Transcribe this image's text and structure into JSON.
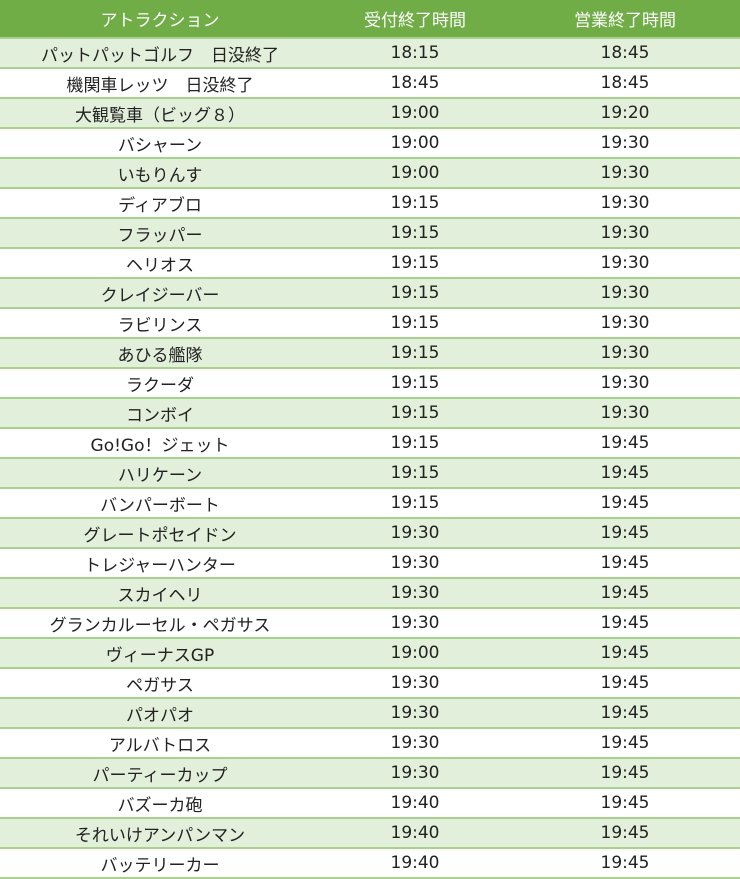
{
  "table": {
    "headers": [
      "アトラクション",
      "受付終了時間",
      "営業終了時間"
    ],
    "rows": [
      [
        "パットパットゴルフ　日没終了",
        "18:15",
        "18:45"
      ],
      [
        "機関車レッツ　日没終了",
        "18:45",
        "18:45"
      ],
      [
        "大観覧車（ビッグ８）",
        "19:00",
        "19:20"
      ],
      [
        "バシャーン",
        "19:00",
        "19:30"
      ],
      [
        "いもりんす",
        "19:00",
        "19:30"
      ],
      [
        "ディアブロ",
        "19:15",
        "19:30"
      ],
      [
        "フラッパー",
        "19:15",
        "19:30"
      ],
      [
        "ヘリオス",
        "19:15",
        "19:30"
      ],
      [
        "クレイジーバー",
        "19:15",
        "19:30"
      ],
      [
        "ラビリンス",
        "19:15",
        "19:30"
      ],
      [
        "あひる艦隊",
        "19:15",
        "19:30"
      ],
      [
        "ラクーダ",
        "19:15",
        "19:30"
      ],
      [
        "コンボイ",
        "19:15",
        "19:30"
      ],
      [
        "Go!Go！ジェット",
        "19:15",
        "19:45"
      ],
      [
        "ハリケーン",
        "19:15",
        "19:45"
      ],
      [
        "バンパーボート",
        "19:15",
        "19:45"
      ],
      [
        "グレートポセイドン",
        "19:30",
        "19:45"
      ],
      [
        "トレジャーハンター",
        "19:30",
        "19:45"
      ],
      [
        "スカイヘリ",
        "19:30",
        "19:45"
      ],
      [
        "グランカルーセル・ペガサス",
        "19:30",
        "19:45"
      ],
      [
        "ヴィーナスGP",
        "19:00",
        "19:45"
      ],
      [
        "ペガサス",
        "19:30",
        "19:45"
      ],
      [
        "パオパオ",
        "19:30",
        "19:45"
      ],
      [
        "アルバトロス",
        "19:30",
        "19:45"
      ],
      [
        "パーティーカップ",
        "19:30",
        "19:45"
      ],
      [
        "バズーカ砲",
        "19:40",
        "19:45"
      ],
      [
        "それいけアンパンマン",
        "19:40",
        "19:45"
      ],
      [
        "バッテリーカー",
        "19:40",
        "19:45"
      ]
    ]
  },
  "colors": {
    "header": "#70ad47",
    "stripe": "#e2efda",
    "border": "#a9d18e"
  }
}
